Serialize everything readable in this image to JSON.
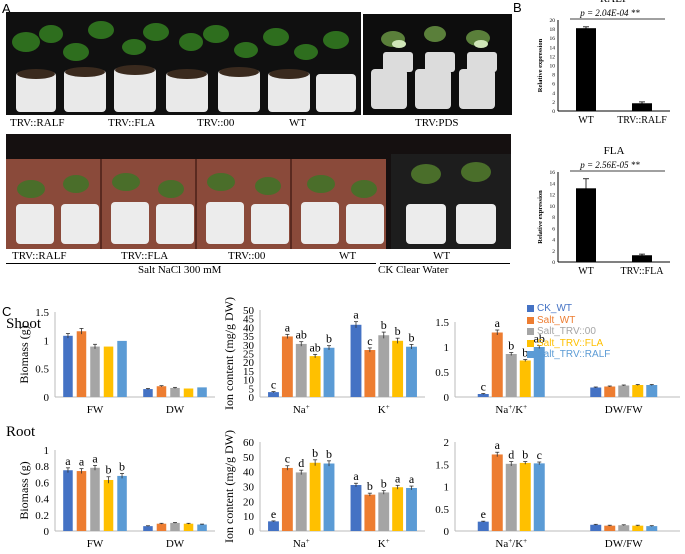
{
  "panels": {
    "a": "A",
    "b": "B",
    "c": "C"
  },
  "photo_top_labels": [
    "TRV::RALF",
    "TRV::FLA",
    "TRV::00",
    "WT",
    "TRV:PDS"
  ],
  "photo_bottom_labels": [
    "TRV::RALF",
    "TRV::FLA",
    "TRV::00",
    "WT",
    "WT"
  ],
  "salt_label": "Salt NaCl 300 mM",
  "ck_label": "CK Clear Water",
  "row_titles": {
    "shoot": "Shoot",
    "root": "Root"
  },
  "legend": [
    {
      "name": "CK_WT",
      "color": "#4472C4"
    },
    {
      "name": "Salt_WT",
      "color": "#ED7D31"
    },
    {
      "name": "Salt_TRV::00",
      "color": "#A5A5A5"
    },
    {
      "name": "Salt_TRV::FLA",
      "color": "#FFC000"
    },
    {
      "name": "Salt_TRV::RALF",
      "color": "#5B9BD5"
    }
  ],
  "chart_data": [
    {
      "id": "ralf",
      "type": "bar",
      "title": "RALF",
      "ylabel": "Relative expression",
      "categories": [
        "WT",
        "TRV::RALF"
      ],
      "values": [
        18.2,
        1.7
      ],
      "errors": [
        0.3,
        0.3
      ],
      "ylim": [
        0,
        20
      ],
      "yticks": [
        0,
        2,
        4,
        6,
        8,
        10,
        12,
        14,
        16,
        18,
        20
      ],
      "annotation": "p = 2.04E-04  **"
    },
    {
      "id": "fla",
      "type": "bar",
      "title": "FLA",
      "ylabel": "Relative expression",
      "categories": [
        "WT",
        "TRV::FLA"
      ],
      "values": [
        13.1,
        1.2
      ],
      "errors": [
        1.7,
        0.2
      ],
      "ylim": [
        0,
        16
      ],
      "yticks": [
        0,
        2,
        4,
        6,
        8,
        10,
        12,
        14,
        16
      ],
      "annotation": "p = 2.56E-05  **"
    },
    {
      "id": "shoot_biomass",
      "type": "bar",
      "ylabel": "Biomass (g)",
      "categories": [
        "FW",
        "DW"
      ],
      "ylim": [
        0,
        1.5
      ],
      "yticks": [
        0,
        0.5,
        1,
        1.5
      ],
      "ytick_labels": [
        "0",
        "0.5",
        "1",
        "1.5"
      ],
      "series": [
        {
          "values": [
            1.08,
            0.14
          ],
          "errors": [
            0.04,
            0.01
          ],
          "letters": [
            "",
            ""
          ]
        },
        {
          "values": [
            1.16,
            0.19
          ],
          "errors": [
            0.05,
            0.01
          ],
          "letters": [
            "",
            ""
          ]
        },
        {
          "values": [
            0.89,
            0.16
          ],
          "errors": [
            0.04,
            0.01
          ],
          "letters": [
            "",
            ""
          ]
        },
        {
          "values": [
            0.89,
            0.15
          ],
          "errors": [
            0.0,
            0.0
          ],
          "letters": [
            "",
            ""
          ]
        },
        {
          "values": [
            0.99,
            0.17
          ],
          "errors": [
            0.0,
            0.0
          ],
          "letters": [
            "",
            ""
          ]
        }
      ]
    },
    {
      "id": "shoot_ion",
      "type": "bar",
      "ylabel": "Ion content (mg/g DW)",
      "categories": [
        "Na+",
        "K+"
      ],
      "ylim": [
        0,
        50
      ],
      "yticks": [
        0,
        5,
        10,
        15,
        20,
        25,
        30,
        35,
        40,
        45,
        50
      ],
      "series": [
        {
          "values": [
            2.8,
            41.5
          ],
          "errors": [
            0.3,
            1.8
          ],
          "letters": [
            "c",
            "a"
          ]
        },
        {
          "values": [
            34.8,
            27.0
          ],
          "errors": [
            1.2,
            1.2
          ],
          "letters": [
            "a",
            "c"
          ]
        },
        {
          "values": [
            30.5,
            35.5
          ],
          "errors": [
            1.3,
            1.8
          ],
          "letters": [
            "ab",
            "b"
          ]
        },
        {
          "values": [
            23.5,
            32.3
          ],
          "errors": [
            1.0,
            1.5
          ],
          "letters": [
            "ab",
            "b"
          ]
        },
        {
          "values": [
            28.3,
            28.9
          ],
          "errors": [
            1.2,
            1.3
          ],
          "letters": [
            "b",
            "b"
          ]
        }
      ]
    },
    {
      "id": "shoot_ratio",
      "type": "bar",
      "categories": [
        "Na+/K+",
        "DW/FW"
      ],
      "ylim": [
        0,
        1.5
      ],
      "yticks": [
        0,
        0.5,
        1,
        1.5
      ],
      "ytick_labels": [
        "0",
        "0.5",
        "1",
        "1.5"
      ],
      "series": [
        {
          "values": [
            0.06,
            0.19
          ],
          "errors": [
            0.01,
            0.01
          ],
          "letters": [
            "c",
            ""
          ]
        },
        {
          "values": [
            1.29,
            0.21
          ],
          "errors": [
            0.05,
            0.01
          ],
          "letters": [
            "a",
            ""
          ]
        },
        {
          "values": [
            0.86,
            0.23
          ],
          "errors": [
            0.03,
            0.01
          ],
          "letters": [
            "b",
            ""
          ]
        },
        {
          "values": [
            0.73,
            0.24
          ],
          "errors": [
            0.02,
            0.01
          ],
          "letters": [
            "b",
            ""
          ]
        },
        {
          "values": [
            1.0,
            0.24
          ],
          "errors": [
            0.03,
            0.01
          ],
          "letters": [
            "ab",
            ""
          ]
        }
      ]
    },
    {
      "id": "root_biomass",
      "type": "bar",
      "ylabel": "Biomass (g)",
      "categories": [
        "FW",
        "DW"
      ],
      "ylim": [
        0,
        1.0
      ],
      "yticks": [
        0,
        0.2,
        0.4,
        0.6,
        0.8,
        1.0
      ],
      "ytick_labels": [
        "0",
        "0.2",
        "0.4",
        "0.6",
        "0.8",
        "1"
      ],
      "series": [
        {
          "values": [
            0.75,
            0.06
          ],
          "errors": [
            0.03,
            0.005
          ],
          "letters": [
            "a",
            ""
          ]
        },
        {
          "values": [
            0.74,
            0.09
          ],
          "errors": [
            0.03,
            0.005
          ],
          "letters": [
            "a",
            ""
          ]
        },
        {
          "values": [
            0.78,
            0.1
          ],
          "errors": [
            0.03,
            0.005
          ],
          "letters": [
            "a",
            ""
          ]
        },
        {
          "values": [
            0.63,
            0.09
          ],
          "errors": [
            0.04,
            0.005
          ],
          "letters": [
            "b",
            ""
          ]
        },
        {
          "values": [
            0.68,
            0.08
          ],
          "errors": [
            0.03,
            0.005
          ],
          "letters": [
            "b",
            ""
          ]
        }
      ]
    },
    {
      "id": "root_ion",
      "type": "bar",
      "ylabel": "Ion content (mg/g DW)",
      "categories": [
        "Na+",
        "K+"
      ],
      "ylim": [
        0,
        60
      ],
      "yticks": [
        0,
        10,
        20,
        30,
        40,
        50,
        60
      ],
      "series": [
        {
          "values": [
            6.5,
            31.0
          ],
          "errors": [
            0.3,
            1.2
          ],
          "letters": [
            "e",
            "a"
          ]
        },
        {
          "values": [
            42.5,
            24.5
          ],
          "errors": [
            1.5,
            1.0
          ],
          "letters": [
            "c",
            "b"
          ]
        },
        {
          "values": [
            39.5,
            26.0
          ],
          "errors": [
            1.5,
            1.2
          ],
          "letters": [
            "d",
            "b"
          ]
        },
        {
          "values": [
            46.0,
            29.5
          ],
          "errors": [
            2.0,
            1.3
          ],
          "letters": [
            "b",
            "a"
          ]
        },
        {
          "values": [
            45.5,
            29.0
          ],
          "errors": [
            1.8,
            1.3
          ],
          "letters": [
            "b",
            "a"
          ]
        }
      ]
    },
    {
      "id": "root_ratio",
      "type": "bar",
      "categories": [
        "Na+/K+",
        "DW/FW"
      ],
      "ylim": [
        0,
        2
      ],
      "yticks": [
        0,
        0.5,
        1,
        1.5,
        2
      ],
      "ytick_labels": [
        "0",
        "0.5",
        "1",
        "1.5",
        "2"
      ],
      "series": [
        {
          "values": [
            0.21,
            0.14
          ],
          "errors": [
            0.01,
            0.01
          ],
          "letters": [
            "e",
            ""
          ]
        },
        {
          "values": [
            1.72,
            0.12
          ],
          "errors": [
            0.05,
            0.01
          ],
          "letters": [
            "a",
            ""
          ]
        },
        {
          "values": [
            1.51,
            0.13
          ],
          "errors": [
            0.05,
            0.01
          ],
          "letters": [
            "d",
            ""
          ]
        },
        {
          "values": [
            1.53,
            0.12
          ],
          "errors": [
            0.03,
            0.01
          ],
          "letters": [
            "b",
            ""
          ]
        },
        {
          "values": [
            1.52,
            0.11
          ],
          "errors": [
            0.03,
            0.01
          ],
          "letters": [
            "c",
            ""
          ]
        }
      ]
    }
  ]
}
